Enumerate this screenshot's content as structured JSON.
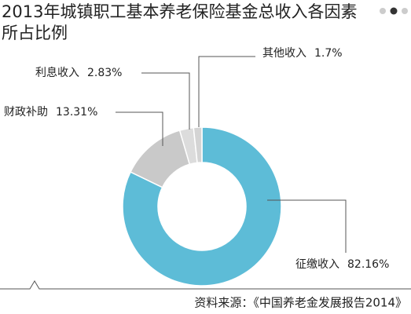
{
  "chart_data": {
    "type": "donut",
    "title": "2013年城镇职工基本养老保险基金总收入各因素所占比例",
    "categories": [
      "征缴收入",
      "财政补助",
      "利息收入",
      "其他收入"
    ],
    "values": [
      82.16,
      13.31,
      2.83,
      1.7
    ],
    "value_labels": [
      "82.16%",
      "13.31%",
      "2.83%",
      "1.7%"
    ],
    "colors": [
      "#5dbcd7",
      "#c9c9c9",
      "#dcdcdc",
      "#d4d4d4"
    ],
    "source": "资料来源：《中国养老金发展报告2014》"
  }
}
